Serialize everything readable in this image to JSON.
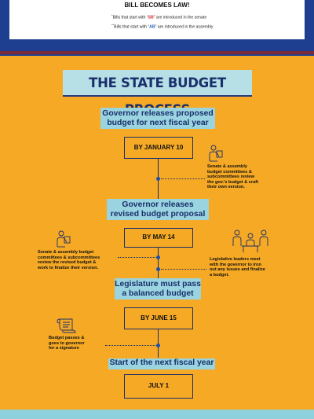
{
  "top": {
    "title": "BILL BECOMES LAW!",
    "note1": {
      "mark": "*",
      "pre": "Bills that start with “",
      "code": "SB",
      "post": "” are introduced in the senate"
    },
    "note2": {
      "mark": "**",
      "pre": "Bills that start with “",
      "code": "AB",
      "post": "” are introduced in the assembly"
    }
  },
  "title": "THE STATE BUDGET PROCESS",
  "steps": [
    {
      "heading": [
        "Governor releases proposed",
        "budget for next fiscal year"
      ],
      "box": "BY JANUARY 10"
    },
    {
      "heading": [
        "Governor releases",
        "revised budget proposal"
      ],
      "box": "BY MAY 14"
    },
    {
      "heading": [
        "Legislature must pass",
        "a balanced budget"
      ],
      "box": "BY JUNE 15"
    },
    {
      "heading": [
        "Start of the next fiscal year"
      ],
      "box": "JULY 1"
    }
  ],
  "notes": {
    "right1": [
      "Senate & assembly",
      "budget committees &",
      "subcommittees review",
      "the gov.'s budget & craft",
      "their own version."
    ],
    "left2": [
      "Senate & assembly budget",
      "committees & subcommittees",
      "review the revised budget &",
      "work to finalize their version."
    ],
    "right2": [
      "Legislative leaders meet",
      "with the governor to iron",
      "out any issues and finalize",
      "a budget."
    ],
    "left3": [
      "Budget passes &",
      "goes to governor",
      "for a signature"
    ]
  },
  "icons": [
    "person-reading-icon",
    "person-reading-icon",
    "meeting-icon",
    "scroll-icon"
  ],
  "colors": {
    "navy": "#1e3f8f",
    "orange": "#f6a924",
    "cyan": "#9ad4e0",
    "text": "#1a2f6b",
    "dot": "#1a4fb0"
  }
}
